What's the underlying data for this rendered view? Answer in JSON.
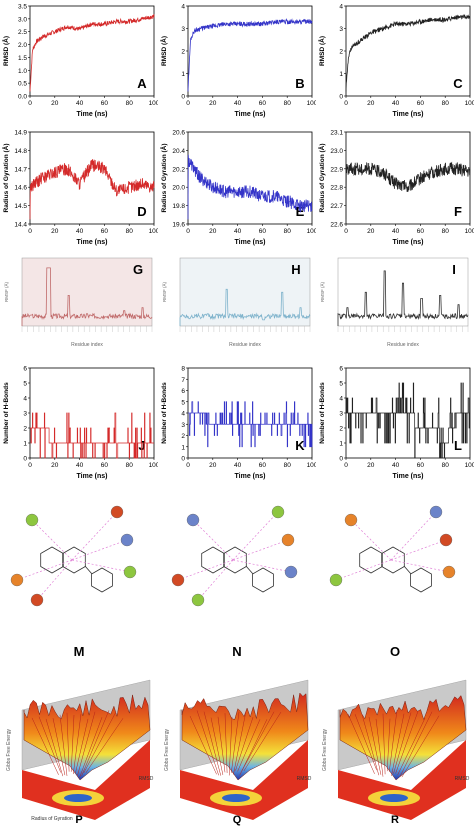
{
  "rows": {
    "rmsd": {
      "ylabel": "RMSD (Å)",
      "xlabel": "Time (ns)",
      "panels": [
        {
          "letter": "A",
          "color": "#d42a2a",
          "yticks": [
            "0.0",
            "0.5",
            "1.0",
            "1.5",
            "2.0",
            "2.5",
            "3.0",
            "3.5"
          ]
        },
        {
          "letter": "B",
          "color": "#3434c8",
          "yticks": [
            "0",
            "1",
            "2",
            "3",
            "4"
          ]
        },
        {
          "letter": "C",
          "color": "#222222",
          "yticks": [
            "0",
            "1",
            "2",
            "3",
            "4"
          ]
        }
      ]
    },
    "rg": {
      "ylabel": "Radius of Gyration (Å)",
      "xlabel": "Time (ns)",
      "panels": [
        {
          "letter": "D",
          "color": "#d42a2a",
          "yticks": [
            "14.4",
            "14.5",
            "14.6",
            "14.7",
            "14.8",
            "14.9"
          ]
        },
        {
          "letter": "E",
          "color": "#3434c8",
          "yticks": [
            "19.6",
            "19.8",
            "20.0",
            "20.2",
            "20.4",
            "20.6"
          ]
        },
        {
          "letter": "F",
          "color": "#222222",
          "yticks": [
            "22.6",
            "22.7",
            "22.8",
            "22.9",
            "23.0",
            "23.1"
          ]
        }
      ]
    },
    "rmsf": {
      "ylabel": "RMSF (Å)",
      "xlabel": "Residue index",
      "panels": [
        {
          "letter": "G",
          "color": "#c06a6a",
          "fill": "#f4e6e6"
        },
        {
          "letter": "H",
          "color": "#7fb3cc",
          "fill": "#eef3f6"
        },
        {
          "letter": "I",
          "color": "#333333",
          "fill": "#ffffff"
        }
      ]
    },
    "hbond": {
      "ylabel": "Number of H-Bonds",
      "xlabel": "Time (ns)",
      "panels": [
        {
          "letter": "J",
          "color": "#d42a2a",
          "yticks": [
            "0",
            "1",
            "2",
            "3",
            "4",
            "5",
            "6"
          ]
        },
        {
          "letter": "K",
          "color": "#3434c8",
          "yticks": [
            "0",
            "1",
            "2",
            "3",
            "4",
            "5",
            "6",
            "7",
            "8"
          ]
        },
        {
          "letter": "L",
          "color": "#222222",
          "yticks": [
            "0",
            "1",
            "2",
            "3",
            "4",
            "5",
            "6"
          ]
        }
      ]
    }
  },
  "xticks": [
    "0",
    "20",
    "40",
    "60",
    "80",
    "100"
  ],
  "interaction_panels": [
    {
      "letter": "M"
    },
    {
      "letter": "N"
    },
    {
      "letter": "O"
    }
  ],
  "landscape_panels": [
    {
      "letter": "P",
      "axis_radius": "Radius of Gyration",
      "axis_rmsd": "RMSD"
    },
    {
      "letter": "Q",
      "axis_radius": "",
      "axis_rmsd": "RMSD"
    },
    {
      "letter": "R",
      "axis_radius": "",
      "axis_rmsd": "RMSD"
    }
  ],
  "chart_data": [
    {
      "type": "line",
      "panel": "A",
      "xlabel": "Time (ns)",
      "ylabel": "RMSD (Å)",
      "xlim": [
        0,
        100
      ],
      "ylim": [
        0,
        3.5
      ],
      "series": [
        {
          "x": [
            0,
            2,
            5,
            10,
            20,
            30,
            40,
            50,
            60,
            70,
            80,
            90,
            100
          ],
          "y": [
            0.2,
            1.8,
            2.1,
            2.3,
            2.5,
            2.7,
            2.6,
            2.8,
            2.8,
            2.9,
            2.9,
            3.0,
            3.1
          ]
        }
      ]
    },
    {
      "type": "line",
      "panel": "B",
      "xlabel": "Time (ns)",
      "ylabel": "RMSD (Å)",
      "xlim": [
        0,
        100
      ],
      "ylim": [
        0,
        4
      ],
      "series": [
        {
          "x": [
            0,
            2,
            5,
            10,
            20,
            30,
            40,
            50,
            60,
            70,
            80,
            90,
            100
          ],
          "y": [
            0.3,
            2.5,
            2.9,
            3.0,
            3.1,
            3.2,
            3.2,
            3.2,
            3.2,
            3.3,
            3.3,
            3.3,
            3.3
          ]
        }
      ]
    },
    {
      "type": "line",
      "panel": "C",
      "xlabel": "Time (ns)",
      "ylabel": "RMSD (Å)",
      "xlim": [
        0,
        100
      ],
      "ylim": [
        0,
        4
      ],
      "series": [
        {
          "x": [
            0,
            2,
            5,
            10,
            20,
            30,
            40,
            50,
            60,
            70,
            80,
            90,
            100
          ],
          "y": [
            0.3,
            1.8,
            2.2,
            2.4,
            2.8,
            3.0,
            3.2,
            3.2,
            3.3,
            3.4,
            3.4,
            3.5,
            3.5
          ]
        }
      ]
    },
    {
      "type": "line",
      "panel": "D",
      "xlabel": "Time (ns)",
      "ylabel": "Radius of Gyration (Å)",
      "xlim": [
        0,
        100
      ],
      "ylim": [
        14.4,
        14.9
      ],
      "series": [
        {
          "x": [
            0,
            10,
            20,
            30,
            40,
            50,
            60,
            70,
            80,
            90,
            100
          ],
          "y": [
            14.6,
            14.65,
            14.68,
            14.7,
            14.62,
            14.72,
            14.7,
            14.58,
            14.6,
            14.62,
            14.6
          ]
        }
      ]
    },
    {
      "type": "line",
      "panel": "E",
      "xlabel": "Time (ns)",
      "ylabel": "Radius of Gyration (Å)",
      "xlim": [
        0,
        100
      ],
      "ylim": [
        19.6,
        20.6
      ],
      "series": [
        {
          "x": [
            0,
            10,
            20,
            30,
            40,
            50,
            60,
            70,
            80,
            90,
            100
          ],
          "y": [
            20.3,
            20.1,
            20.0,
            19.95,
            19.95,
            19.95,
            19.9,
            19.9,
            19.85,
            19.8,
            19.8
          ]
        }
      ]
    },
    {
      "type": "line",
      "panel": "F",
      "xlabel": "Time (ns)",
      "ylabel": "Radius of Gyration (Å)",
      "xlim": [
        0,
        100
      ],
      "ylim": [
        22.6,
        23.1
      ],
      "series": [
        {
          "x": [
            0,
            10,
            20,
            30,
            40,
            50,
            60,
            70,
            80,
            90,
            100
          ],
          "y": [
            22.9,
            22.9,
            22.9,
            22.88,
            22.82,
            22.8,
            22.85,
            22.88,
            22.9,
            22.9,
            22.88
          ]
        }
      ]
    },
    {
      "type": "line",
      "panel": "J",
      "xlabel": "Time (ns)",
      "ylabel": "Number of H-Bonds",
      "xlim": [
        0,
        100
      ],
      "ylim": [
        0,
        6
      ],
      "series": [
        {
          "x": [
            0,
            10,
            20,
            30,
            40,
            50,
            60,
            70,
            80,
            90,
            100
          ],
          "y": [
            2,
            2,
            1,
            1,
            1,
            1,
            1,
            1,
            1,
            1,
            1
          ]
        }
      ]
    },
    {
      "type": "line",
      "panel": "K",
      "xlabel": "Time (ns)",
      "ylabel": "Number of H-Bonds",
      "xlim": [
        0,
        100
      ],
      "ylim": [
        0,
        8
      ],
      "series": [
        {
          "x": [
            0,
            10,
            20,
            30,
            40,
            50,
            60,
            70,
            80,
            90,
            100
          ],
          "y": [
            4,
            4,
            3,
            3,
            3,
            3,
            3,
            3,
            3,
            3,
            3
          ]
        }
      ]
    },
    {
      "type": "line",
      "panel": "L",
      "xlabel": "Time (ns)",
      "ylabel": "Number of H-Bonds",
      "xlim": [
        0,
        100
      ],
      "ylim": [
        0,
        6
      ],
      "series": [
        {
          "x": [
            0,
            10,
            20,
            30,
            40,
            50,
            60,
            70,
            80,
            90,
            100
          ],
          "y": [
            3,
            3,
            3,
            3,
            3,
            3,
            2,
            2,
            1,
            3,
            3
          ]
        }
      ]
    }
  ]
}
